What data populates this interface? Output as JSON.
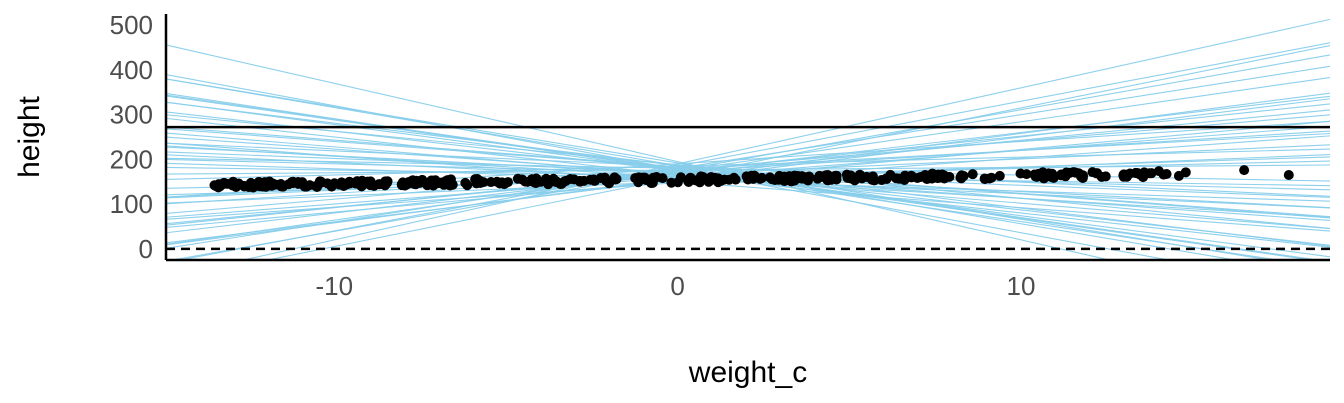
{
  "chart_data": {
    "type": "scatter",
    "xlabel": "weight_c",
    "ylabel": "height",
    "xlim": [
      -14.9,
      19.0
    ],
    "ylim": [
      -25,
      525
    ],
    "x_ticks": [
      -10,
      0,
      10
    ],
    "y_ticks": [
      0,
      100,
      200,
      300,
      400,
      500
    ],
    "grid": false,
    "legend": "none",
    "colors": {
      "points": "#000000",
      "prior_lines": "#87CEEB",
      "axes": "#000000",
      "reference_lines": "#000000"
    },
    "reference_lines": [
      {
        "y": 272,
        "style": "solid"
      },
      {
        "y": 0,
        "style": "dashed"
      }
    ],
    "points_summary": {
      "intercept": 154.6,
      "slope": 0.9,
      "n": 352,
      "x_min": -13.5,
      "x_max": 18.2
    },
    "points_outliers": [
      [
        16.5,
        176
      ],
      [
        17.8,
        165
      ],
      [
        14.6,
        163
      ],
      [
        14.8,
        171
      ]
    ],
    "prior_lines": [
      {
        "intercept": 190,
        "slope": 17.0
      },
      {
        "intercept": 195,
        "slope": -17.5
      },
      {
        "intercept": 178,
        "slope": -11.0
      },
      {
        "intercept": 176,
        "slope": -11.5
      },
      {
        "intercept": 185,
        "slope": 14.5
      },
      {
        "intercept": 175,
        "slope": 13.6
      },
      {
        "intercept": 160,
        "slope": 15.5
      },
      {
        "intercept": 165,
        "slope": -8.5
      },
      {
        "intercept": 170,
        "slope": 9.0
      },
      {
        "intercept": 155,
        "slope": 9.5
      },
      {
        "intercept": 183,
        "slope": -6.0
      },
      {
        "intercept": 172,
        "slope": 8.0
      },
      {
        "intercept": 158,
        "slope": 10.0
      },
      {
        "intercept": 182,
        "slope": -5.8
      },
      {
        "intercept": 176,
        "slope": -10.2
      },
      {
        "intercept": 168,
        "slope": -4.0
      },
      {
        "intercept": 190,
        "slope": 5.0
      },
      {
        "intercept": 178,
        "slope": 4.2
      },
      {
        "intercept": 160,
        "slope": 6.0
      },
      {
        "intercept": 172,
        "slope": -3.0
      },
      {
        "intercept": 185,
        "slope": 2.0
      },
      {
        "intercept": 162,
        "slope": 1.8
      },
      {
        "intercept": 170,
        "slope": -2.0
      },
      {
        "intercept": 180,
        "slope": -1.5
      },
      {
        "intercept": 158,
        "slope": 2.5
      },
      {
        "intercept": 176,
        "slope": 0.6
      },
      {
        "intercept": 165,
        "slope": -6.3
      },
      {
        "intercept": 160,
        "slope": -4.7
      },
      {
        "intercept": 168,
        "slope": -5.5
      },
      {
        "intercept": 150,
        "slope": -5.8
      },
      {
        "intercept": 175,
        "slope": -8.8
      },
      {
        "intercept": 180,
        "slope": -11.0
      },
      {
        "intercept": 186,
        "slope": -13.0
      },
      {
        "intercept": 152,
        "slope": 7.0
      },
      {
        "intercept": 148,
        "slope": 5.5
      },
      {
        "intercept": 174,
        "slope": 11.0
      },
      {
        "intercept": 184,
        "slope": -3.5
      },
      {
        "intercept": 188,
        "slope": -7.5
      },
      {
        "intercept": 166,
        "slope": 3.5
      },
      {
        "intercept": 154,
        "slope": -2.5
      },
      {
        "intercept": 178,
        "slope": -14.2
      },
      {
        "intercept": 172,
        "slope": 4.8
      },
      {
        "intercept": 192,
        "slope": -12.6
      },
      {
        "intercept": 164,
        "slope": -1.2
      },
      {
        "intercept": 180,
        "slope": 12.0
      },
      {
        "intercept": 150,
        "slope": 3.2
      },
      {
        "intercept": 168,
        "slope": 7.5
      },
      {
        "intercept": 186,
        "slope": -9.5
      },
      {
        "intercept": 158,
        "slope": -3.5
      },
      {
        "intercept": 176,
        "slope": 6.5
      }
    ]
  }
}
